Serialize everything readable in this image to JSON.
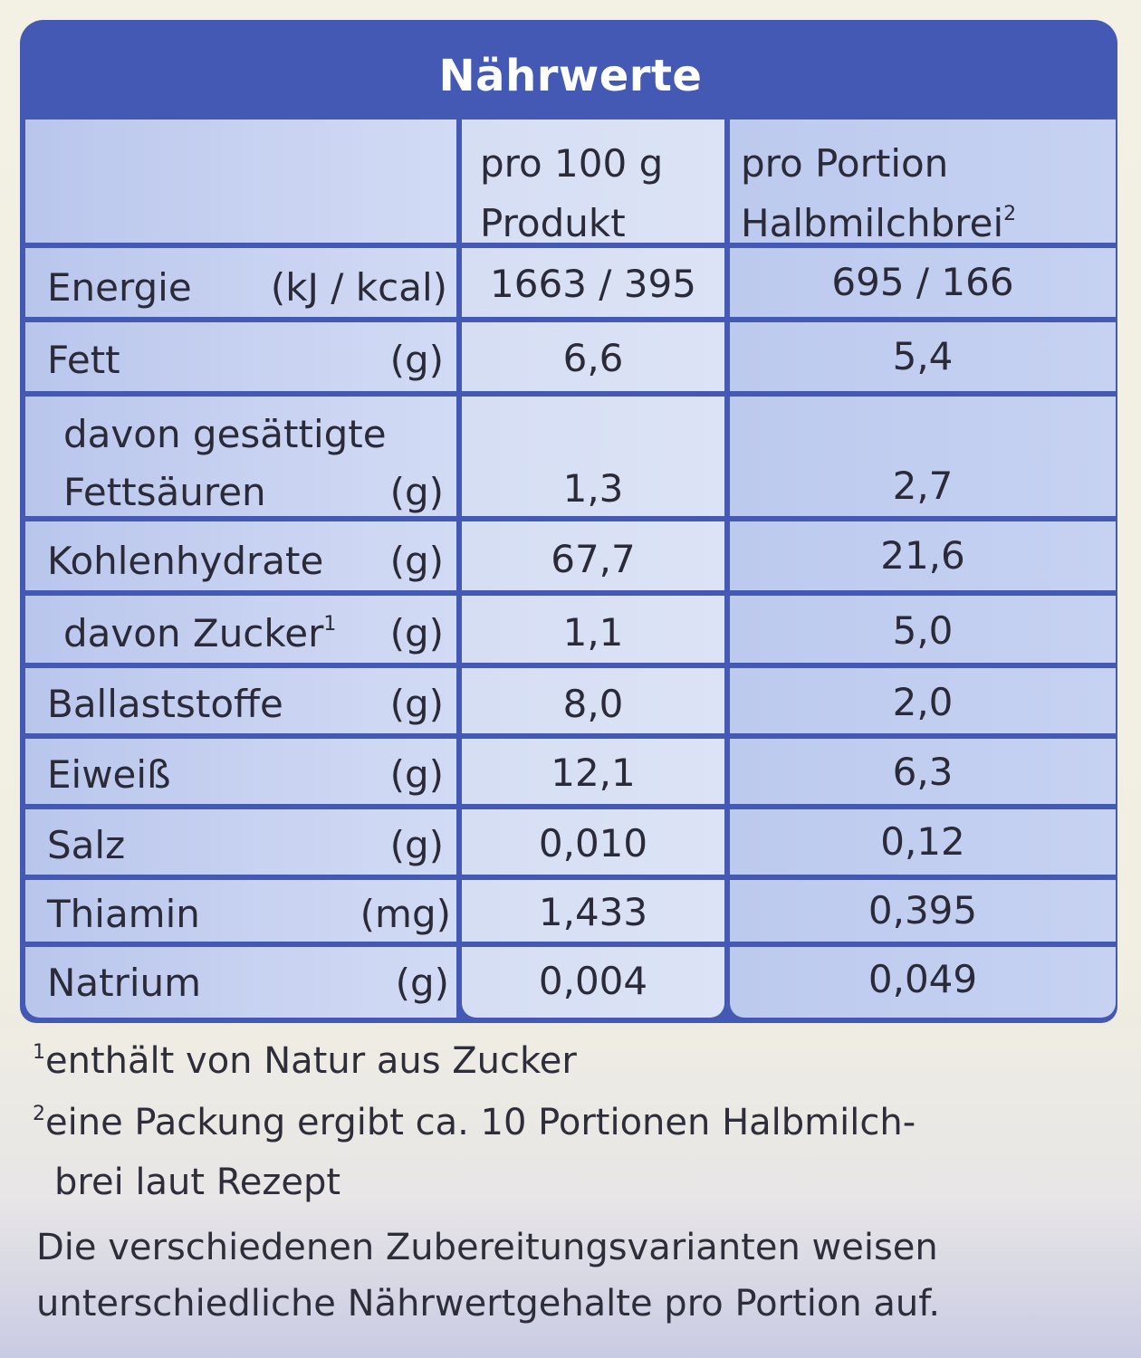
{
  "title": "Nährwerte",
  "columns": {
    "col1_line1": "pro 100 g",
    "col1_line2": "Produkt",
    "col2_line1": "pro Portion",
    "col2_line2": "Halbmilchbrei",
    "col2_sup": "2"
  },
  "rows": [
    {
      "name": "Energie",
      "unit": "(kJ / kcal)",
      "per100": "1663 / 395",
      "perPortion": "695 / 166"
    },
    {
      "name": "Fett",
      "unit": "(g)",
      "per100": "6,6",
      "perPortion": "5,4"
    },
    {
      "name_line1": "davon gesättigte",
      "name": "Fettsäuren",
      "unit": "(g)",
      "per100": "1,3",
      "perPortion": "2,7"
    },
    {
      "name": "Kohlenhydrate",
      "unit": "(g)",
      "per100": "67,7",
      "perPortion": "21,6"
    },
    {
      "name": "davon Zucker",
      "sup": "1",
      "unit": "(g)",
      "per100": "1,1",
      "perPortion": "5,0"
    },
    {
      "name": "Ballaststoffe",
      "unit": "(g)",
      "per100": "8,0",
      "perPortion": "2,0"
    },
    {
      "name": "Eiweiß",
      "unit": "(g)",
      "per100": "12,1",
      "perPortion": "6,3"
    },
    {
      "name": "Salz",
      "unit": "(g)",
      "per100": "0,010",
      "perPortion": "0,12"
    },
    {
      "name": "Thiamin",
      "unit": "(mg)",
      "per100": "1,433",
      "perPortion": "0,395"
    },
    {
      "name": "Natrium",
      "unit": "(g)",
      "per100": "0,004",
      "perPortion": "0,049"
    }
  ],
  "footnotes": {
    "f1_mark": "1",
    "f1_text": "enthält von Natur aus Zucker",
    "f2_mark": "2",
    "f2_line1": "eine Packung ergibt ca. 10 Portionen Halbmilch-",
    "f2_line2": "brei laut Rezept",
    "note_line1": "Die verschiedenen Zubereitungsvarianten weisen",
    "note_line2": "unterschiedliche Nährwertgehalte pro Portion auf."
  },
  "colors": {
    "header_blue": "#4359b3",
    "cell_blue": "#c8d2f1",
    "text": "#2a2a38"
  }
}
